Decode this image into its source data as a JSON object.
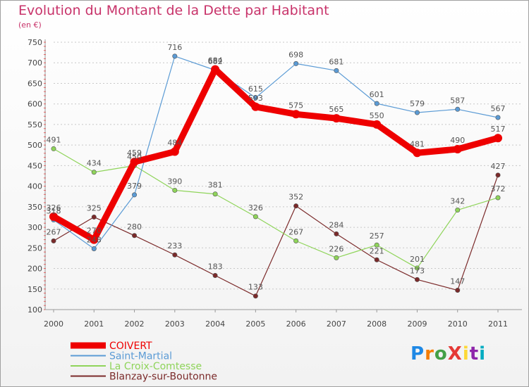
{
  "chart_data": {
    "type": "line",
    "title": "Evolution du Montant de la Dette par Habitant",
    "subtitle": "(en €)",
    "x": [
      "2000",
      "2001",
      "2002",
      "2003",
      "2004",
      "2005",
      "2006",
      "2007",
      "2008",
      "2009",
      "2010",
      "2011"
    ],
    "y_ticks": [
      100,
      150,
      200,
      250,
      300,
      350,
      400,
      450,
      500,
      550,
      600,
      650,
      700,
      750
    ],
    "ylim": [
      100,
      750
    ],
    "grid": "horizontal dotted",
    "legend_position": "bottom-left",
    "series": [
      {
        "name": "COIVERT",
        "color": "#ee0000",
        "values": [
          326,
          270,
          459,
          484,
          684,
          593,
          575,
          565,
          550,
          481,
          490,
          517
        ]
      },
      {
        "name": "Saint-Martial",
        "color": "#5b9bd5",
        "values": [
          318,
          248,
          379,
          716,
          682,
          615,
          698,
          681,
          601,
          579,
          587,
          567
        ]
      },
      {
        "name": "La Croix-Comtesse",
        "color": "#8fd45a",
        "values": [
          491,
          434,
          450,
          390,
          381,
          326,
          267,
          226,
          257,
          201,
          342,
          372
        ]
      },
      {
        "name": "Blanzay-sur-Boutonne",
        "color": "#7b2a2a",
        "values": [
          267,
          325,
          280,
          233,
          183,
          133,
          352,
          284,
          221,
          173,
          147,
          427
        ]
      }
    ]
  },
  "logo": {
    "text": "ProXiti",
    "colors": [
      "#1e88e5",
      "#f57c00",
      "#43a047",
      "#e53935",
      "#fdd835",
      "#8e24aa",
      "#00acc1"
    ]
  }
}
